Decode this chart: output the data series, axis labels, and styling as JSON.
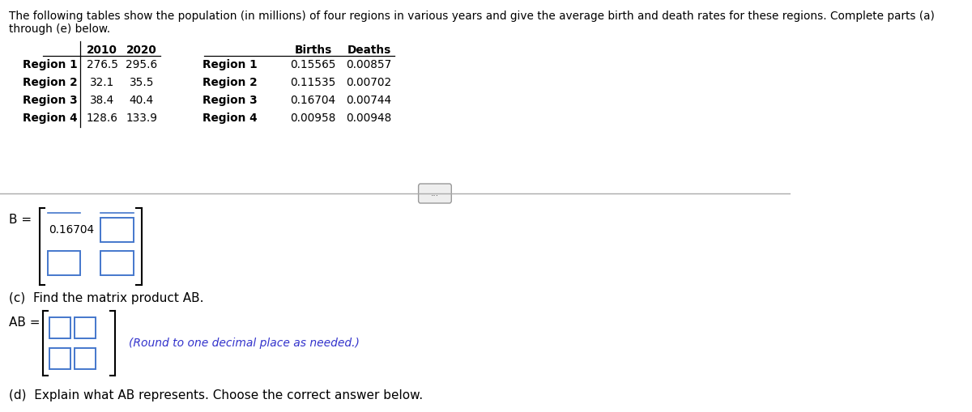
{
  "header_line1": "The following tables show the population (in millions) of four regions in various years and give the average birth and death rates for these regions. Complete parts (a)",
  "header_line2": "through (e) below.",
  "table1_col1": [
    "Region 1",
    "Region 2",
    "Region 3",
    "Region 4"
  ],
  "table1_2010": [
    "276.5",
    "32.1",
    "38.4",
    "128.6"
  ],
  "table1_2020": [
    "295.6",
    "35.5",
    "40.4",
    "133.9"
  ],
  "table2_col1": [
    "Region 1",
    "Region 2",
    "Region 3",
    "Region 4"
  ],
  "table2_births": [
    "0.15565",
    "0.11535",
    "0.16704",
    "0.00958"
  ],
  "table2_deaths": [
    "0.00857",
    "0.00702",
    "0.00744",
    "0.00948"
  ],
  "b_value": "0.16704",
  "c_label": "(c)  Find the matrix product AB.",
  "ab_label": "AB =",
  "ab_note": "(Round to one decimal place as needed.)",
  "d_label": "(d)  Explain what AB represents. Choose the correct answer below.",
  "bg_color": "#ffffff",
  "text_color": "#000000",
  "blue_color": "#3333cc",
  "box_border_color": "#4477cc",
  "divider_color": "#aaaaaa",
  "ellipsis_text": "..."
}
